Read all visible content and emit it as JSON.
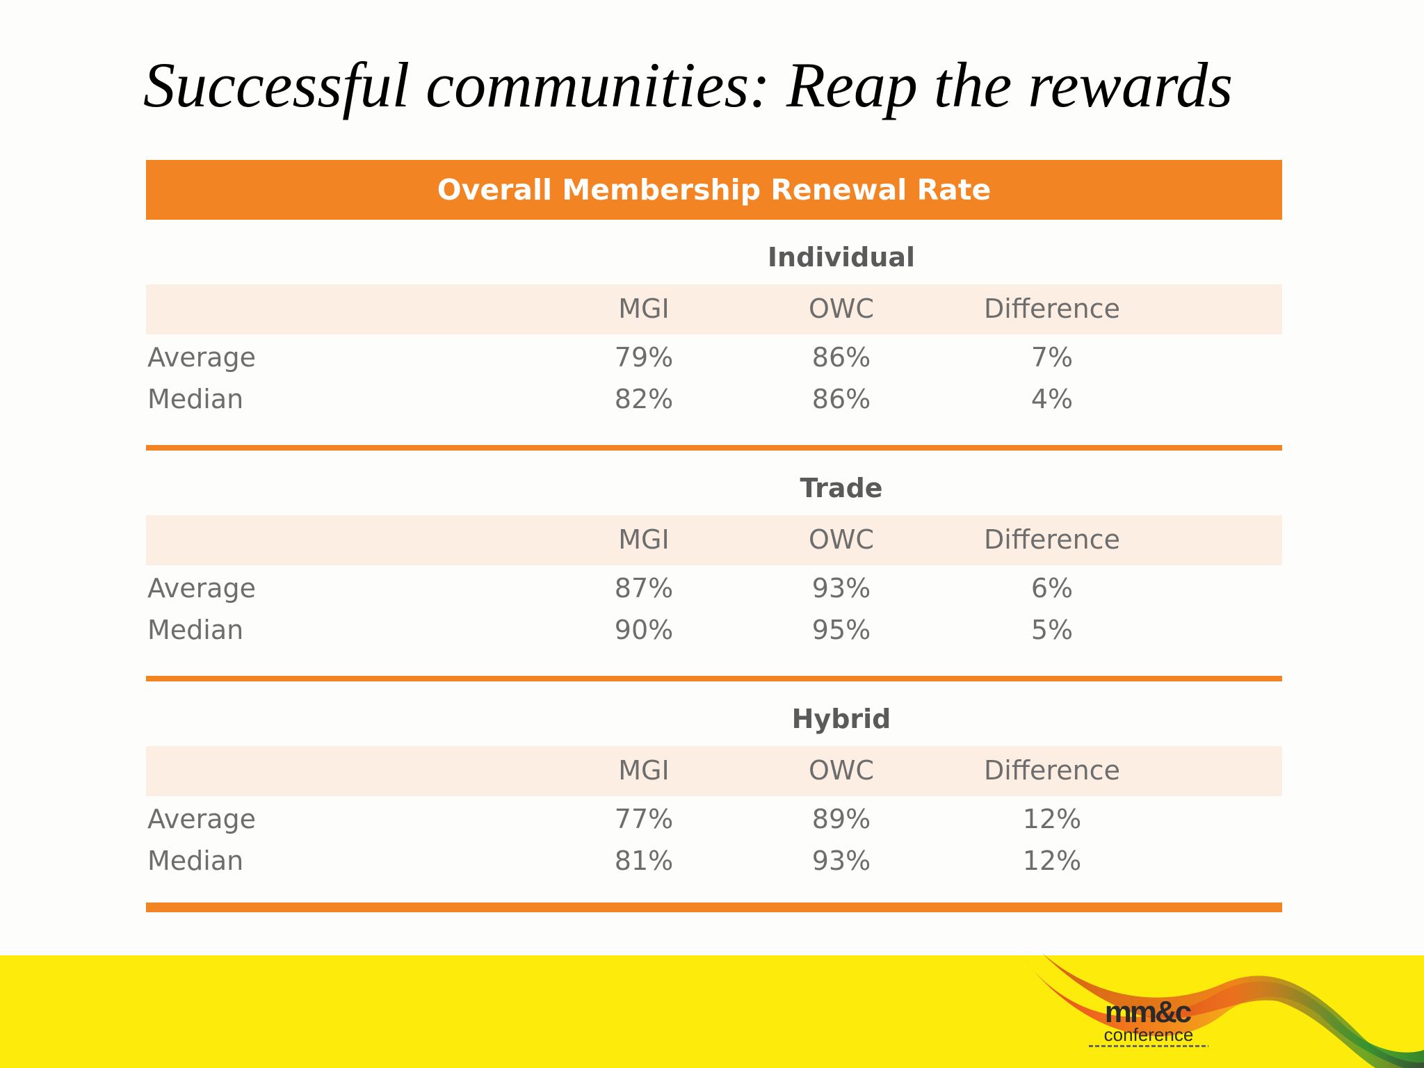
{
  "title": "Successful communities: Reap the rewards",
  "table": {
    "header": "Overall Membership Renewal Rate",
    "columns": [
      "MGI",
      "OWC",
      "Difference"
    ],
    "groups": [
      {
        "name": "Individual",
        "rows": [
          {
            "label": "Average",
            "mgi": "79%",
            "owc": "86%",
            "difference": "7%"
          },
          {
            "label": "Median",
            "mgi": "82%",
            "owc": "86%",
            "difference": "4%"
          }
        ]
      },
      {
        "name": "Trade",
        "rows": [
          {
            "label": "Average",
            "mgi": "87%",
            "owc": "93%",
            "difference": "6%"
          },
          {
            "label": "Median",
            "mgi": "90%",
            "owc": "95%",
            "difference": "5%"
          }
        ]
      },
      {
        "name": "Hybrid",
        "rows": [
          {
            "label": "Average",
            "mgi": "77%",
            "owc": "89%",
            "difference": "12%"
          },
          {
            "label": "Median",
            "mgi": "81%",
            "owc": "93%",
            "difference": "12%"
          }
        ]
      }
    ]
  },
  "logo": {
    "main": "mm&c",
    "sub": "conference"
  },
  "colors": {
    "accent": "#f28423",
    "band": "#fdeee3",
    "footer": "#fdec0b"
  }
}
